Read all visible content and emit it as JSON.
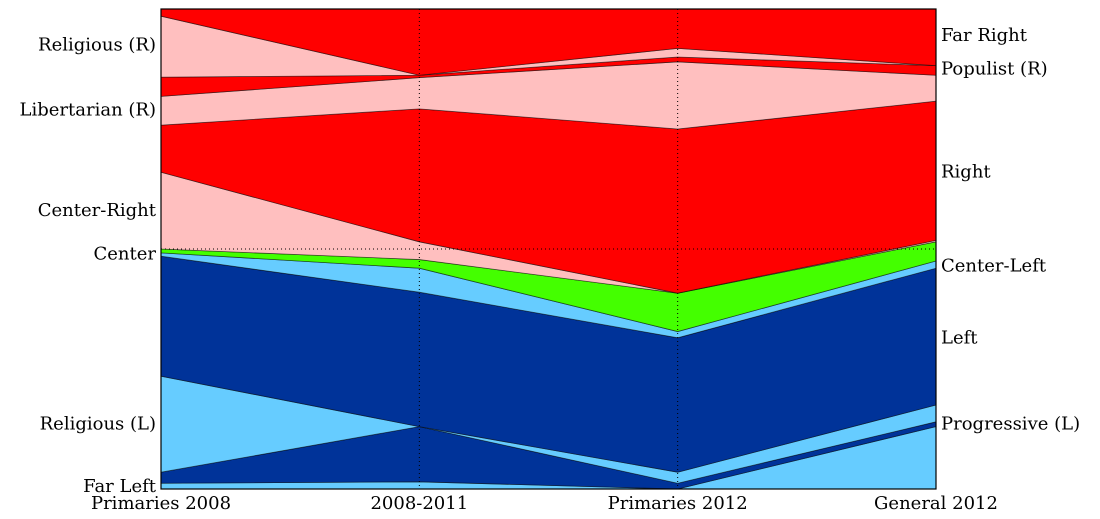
{
  "chart_data": {
    "type": "area",
    "subtype": "stacked-streamgraph",
    "x_categories": [
      "Primaries 2008",
      "2008-2011",
      "Primaries 2012",
      "General 2012"
    ],
    "ylim": [
      0,
      1
    ],
    "grid": "dotted-x",
    "left_labels": [
      {
        "label": "Religious (R)",
        "y": 0.925
      },
      {
        "label": "Libertarian (R)",
        "y": 0.79
      },
      {
        "label": "Center-Right",
        "y": 0.58
      },
      {
        "label": "Center",
        "y": 0.49
      },
      {
        "label": "Religious (L)",
        "y": 0.135
      },
      {
        "label": "Far Left",
        "y": 0.005
      }
    ],
    "right_labels": [
      {
        "label": "Far Right",
        "y": 0.945
      },
      {
        "label": "Populist (R)",
        "y": 0.875
      },
      {
        "label": "Right",
        "y": 0.66
      },
      {
        "label": "Center-Left",
        "y": 0.465
      },
      {
        "label": "Left",
        "y": 0.315
      },
      {
        "label": "Progressive (L)",
        "y": 0.135
      }
    ],
    "center_reference_line": 0.5,
    "bands": [
      {
        "color": "#66ccff",
        "bottom": [
          0.0,
          0.0,
          0.0,
          0.0
        ],
        "top": [
          0.012,
          0.015,
          0.0,
          0.13
        ]
      },
      {
        "color": "#003399",
        "bottom": [
          0.012,
          0.015,
          0.0,
          0.13
        ],
        "top": [
          0.035,
          0.13,
          0.012,
          0.14
        ]
      },
      {
        "color": "#66ccff",
        "bottom": [
          0.035,
          0.13,
          0.012,
          0.14
        ],
        "top": [
          0.235,
          0.13,
          0.035,
          0.175
        ]
      },
      {
        "color": "#003399",
        "bottom": [
          0.235,
          0.13,
          0.035,
          0.175
        ],
        "top": [
          0.485,
          0.41,
          0.315,
          0.46
        ]
      },
      {
        "color": "#66ccff",
        "bottom": [
          0.485,
          0.41,
          0.315,
          0.46
        ],
        "top": [
          0.492,
          0.46,
          0.328,
          0.475
        ]
      },
      {
        "color": "#44ff00",
        "bottom": [
          0.492,
          0.46,
          0.328,
          0.475
        ],
        "top": [
          0.5,
          0.478,
          0.408,
          0.515
        ]
      },
      {
        "color": "#ffbfbf",
        "bottom": [
          0.5,
          0.478,
          0.408,
          0.515
        ],
        "top": [
          0.66,
          0.515,
          0.408,
          0.518
        ]
      },
      {
        "color": "#ff0000",
        "bottom": [
          0.66,
          0.515,
          0.408,
          0.518
        ],
        "top": [
          0.758,
          0.792,
          0.75,
          0.808
        ]
      },
      {
        "color": "#ffbfbf",
        "bottom": [
          0.758,
          0.792,
          0.75,
          0.808
        ],
        "top": [
          0.818,
          0.857,
          0.89,
          0.862
        ]
      },
      {
        "color": "#ff0000",
        "bottom": [
          0.818,
          0.857,
          0.89,
          0.862
        ],
        "top": [
          0.858,
          0.862,
          0.9,
          0.882
        ]
      },
      {
        "color": "#ffbfbf",
        "bottom": [
          0.858,
          0.862,
          0.9,
          0.882
        ],
        "top": [
          0.985,
          0.862,
          0.918,
          0.882
        ]
      },
      {
        "color": "#ff0000",
        "bottom": [
          0.985,
          0.862,
          0.918,
          0.882
        ],
        "top": [
          1.0,
          1.0,
          1.0,
          1.0
        ]
      }
    ]
  }
}
